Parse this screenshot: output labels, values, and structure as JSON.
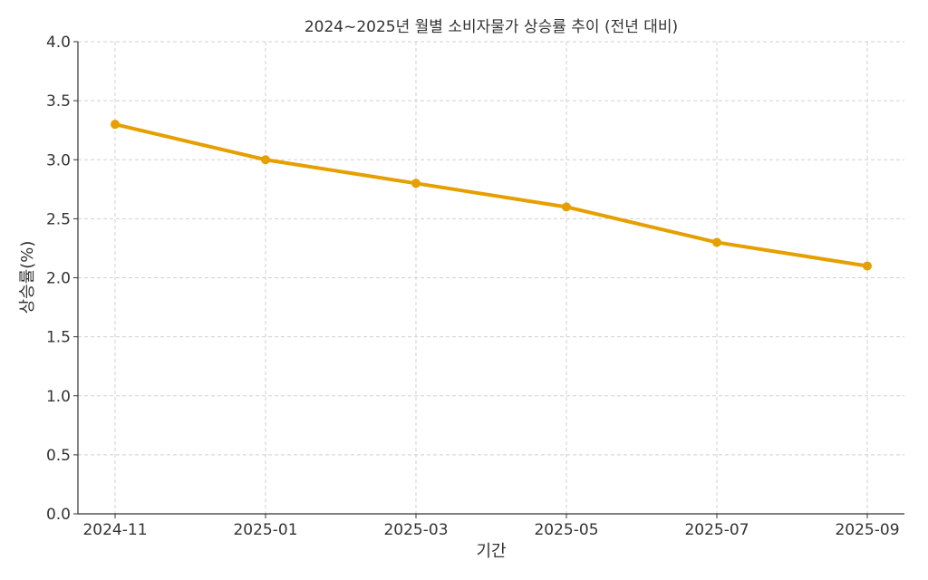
{
  "chart_data": {
    "type": "line",
    "title": "2024~2025년 월별 소비자물가 상승률 추이 (전년 대비)",
    "xlabel": "기간",
    "ylabel": "상승률(%)",
    "x": [
      "2024-11",
      "2025-01",
      "2025-03",
      "2025-05",
      "2025-07",
      "2025-09"
    ],
    "x_ticks": [
      "2024-11",
      "2025-01",
      "2025-03",
      "2025-05",
      "2025-07",
      "2025-09"
    ],
    "series": [
      {
        "values": [
          3.3,
          3.0,
          2.8,
          2.6,
          2.3,
          2.1
        ],
        "color": "#E69F00",
        "marker": "circle"
      }
    ],
    "ylim": [
      0,
      4.0
    ],
    "y_ticks": [
      "0.0",
      "0.5",
      "1.0",
      "1.5",
      "2.0",
      "2.5",
      "3.0",
      "3.5",
      "4.0"
    ],
    "grid": true,
    "grid_style": "dashed"
  }
}
